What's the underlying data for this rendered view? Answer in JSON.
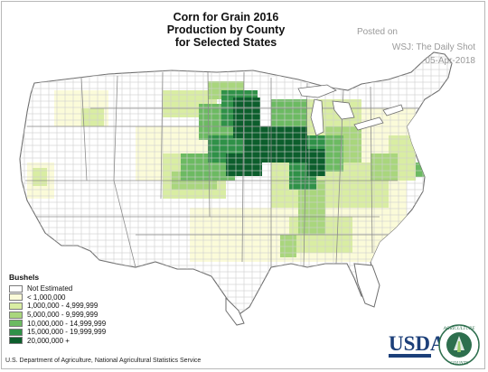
{
  "title": {
    "line1": "Corn for Grain 2016",
    "line2": "Production by County",
    "line3": "for Selected States"
  },
  "watermark": {
    "posted": "Posted on",
    "source": "WSJ: The Daily Shot",
    "date": "05-Apr-2018"
  },
  "legend": {
    "title": "Bushels",
    "items": [
      {
        "label": "Not Estimated",
        "color": "#ffffff"
      },
      {
        "label": "< 1,000,000",
        "color": "#fbfbd9"
      },
      {
        "label": "1,000,000 -  4,999,999",
        "color": "#d9eda3"
      },
      {
        "label": "5,000,000 -  9,999,999",
        "color": "#a9d67d"
      },
      {
        "label": "10,000,000 - 14,999,999",
        "color": "#6cba62"
      },
      {
        "label": "15,000,000 - 19,999,999",
        "color": "#2f9148"
      },
      {
        "label": "20,000,000 +",
        "color": "#0c5e2c"
      }
    ]
  },
  "source_note": "U.S. Department of Agriculture, National Agricultural Statistics Service",
  "logo": {
    "usda": "USDA",
    "seal_top": "AGRICULTURE",
    "seal_bottom": "COUNTS"
  }
}
